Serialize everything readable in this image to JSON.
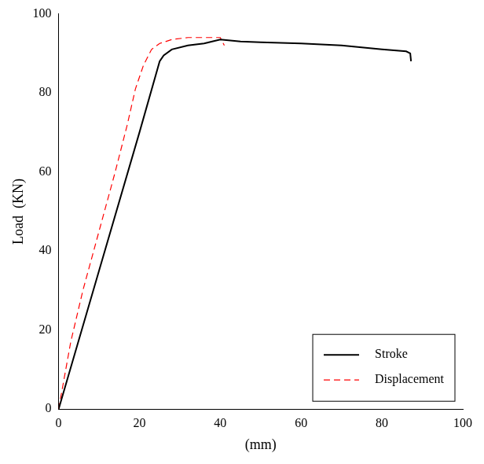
{
  "chart_data": {
    "type": "line",
    "y_label": "Load  (KN)",
    "x_label": "(mm)",
    "xlim": [
      0,
      100
    ],
    "xticks": [
      0,
      20,
      40,
      60,
      80,
      100
    ],
    "ylim": [
      0,
      100
    ],
    "yticks": [
      0,
      20,
      40,
      60,
      80,
      100
    ],
    "grid": false,
    "legend": "lower right",
    "series": [
      {
        "name": "Stroke",
        "color": "#000000",
        "line_style": "solid",
        "x": [
          0,
          10,
          20,
          25,
          26,
          28,
          32,
          36,
          40,
          45,
          50,
          60,
          70,
          80,
          86,
          87,
          87.2
        ],
        "values": [
          0,
          35,
          70,
          88,
          89.5,
          91,
          92,
          92.5,
          93.5,
          93,
          92.8,
          92.5,
          92,
          91,
          90.5,
          90,
          88
        ]
      },
      {
        "name": "Displacement",
        "color": "#ff0000",
        "line_style": "dashed",
        "x": [
          0,
          3,
          6,
          10,
          14,
          17,
          19,
          21,
          23,
          25,
          28,
          32,
          36,
          40,
          41
        ],
        "values": [
          0,
          17,
          30,
          45,
          60,
          72,
          81,
          87,
          91,
          92.5,
          93.5,
          94,
          94,
          94,
          92
        ]
      }
    ]
  }
}
